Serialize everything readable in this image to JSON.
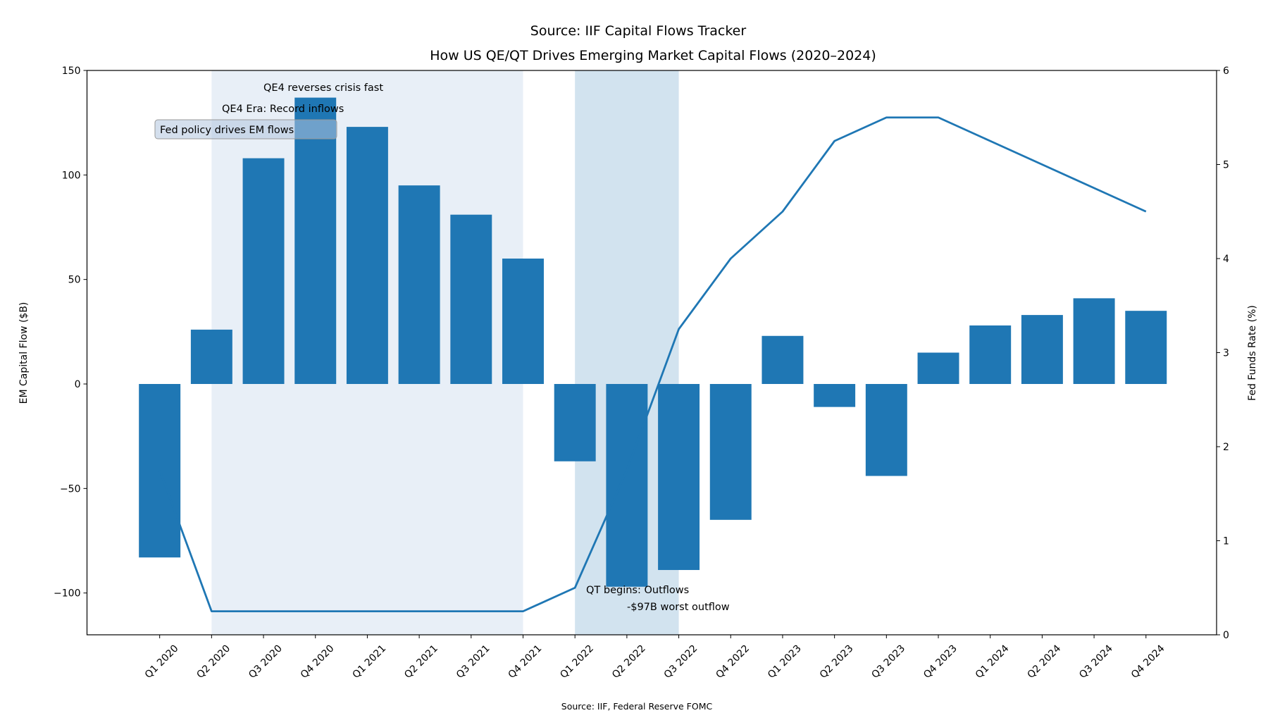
{
  "chart_data": {
    "type": "bar",
    "title": "How US QE/QT Drives Emerging Market Capital Flows (2020–2024)",
    "overlapping_title_text": "Source: IIF Capital Flows Tracker",
    "footnote": "Source: IIF, Federal Reserve FOMC",
    "xlabel": "",
    "ylabel": "EM Capital Flow ($B)",
    "y2label": "Fed Funds Rate (%)",
    "ylim": [
      -120,
      150
    ],
    "y2lim": [
      0,
      6
    ],
    "yticks": [
      -100,
      -50,
      0,
      50,
      100,
      150
    ],
    "ytick_labels": [
      "−100",
      "−50",
      "0",
      "50",
      "100",
      "150"
    ],
    "y2ticks": [
      0,
      1,
      2,
      3,
      4,
      5,
      6
    ],
    "y2tick_labels": [
      "0",
      "1",
      "2",
      "3",
      "4",
      "5",
      "6"
    ],
    "grid": false,
    "categories": [
      "Q1 2020",
      "Q2 2020",
      "Q3 2020",
      "Q4 2020",
      "Q1 2021",
      "Q2 2021",
      "Q3 2021",
      "Q4 2021",
      "Q1 2022",
      "Q2 2022",
      "Q3 2022",
      "Q4 2022",
      "Q1 2023",
      "Q2 2023",
      "Q3 2023",
      "Q4 2023",
      "Q1 2024",
      "Q2 2024",
      "Q3 2024",
      "Q4 2024"
    ],
    "series": [
      {
        "kind": "bar",
        "axis": "left",
        "color": "#1f77b4",
        "values": [
          -83,
          26,
          108,
          137,
          123,
          95,
          81,
          60,
          -37,
          -97,
          -89,
          -65,
          23,
          -11,
          -44,
          15,
          28,
          33,
          41,
          35
        ]
      },
      {
        "kind": "line",
        "axis": "right",
        "color": "#1f77b4",
        "values": [
          1.75,
          0.25,
          0.25,
          0.25,
          0.25,
          0.25,
          0.25,
          0.25,
          0.5,
          1.75,
          3.25,
          4.0,
          4.5,
          5.25,
          5.5,
          5.5,
          5.25,
          5.0,
          4.75,
          4.5
        ]
      }
    ],
    "shaded_regions": [
      {
        "from": "Q2 2020",
        "to": "Q4 2021",
        "color": "#e8eff7"
      },
      {
        "from": "Q1 2022",
        "to": "Q3 2022",
        "color": "#d2e3ef"
      }
    ],
    "annotations": {
      "qe4_reverses": "QE4 reverses crisis fast",
      "qe4_era": "QE4 Era: Record inflows",
      "fed_policy_box": "Fed policy drives EM flows",
      "qt_begins": "QT begins: Outflows",
      "worst_outflow": "-$97B worst outflow"
    }
  }
}
